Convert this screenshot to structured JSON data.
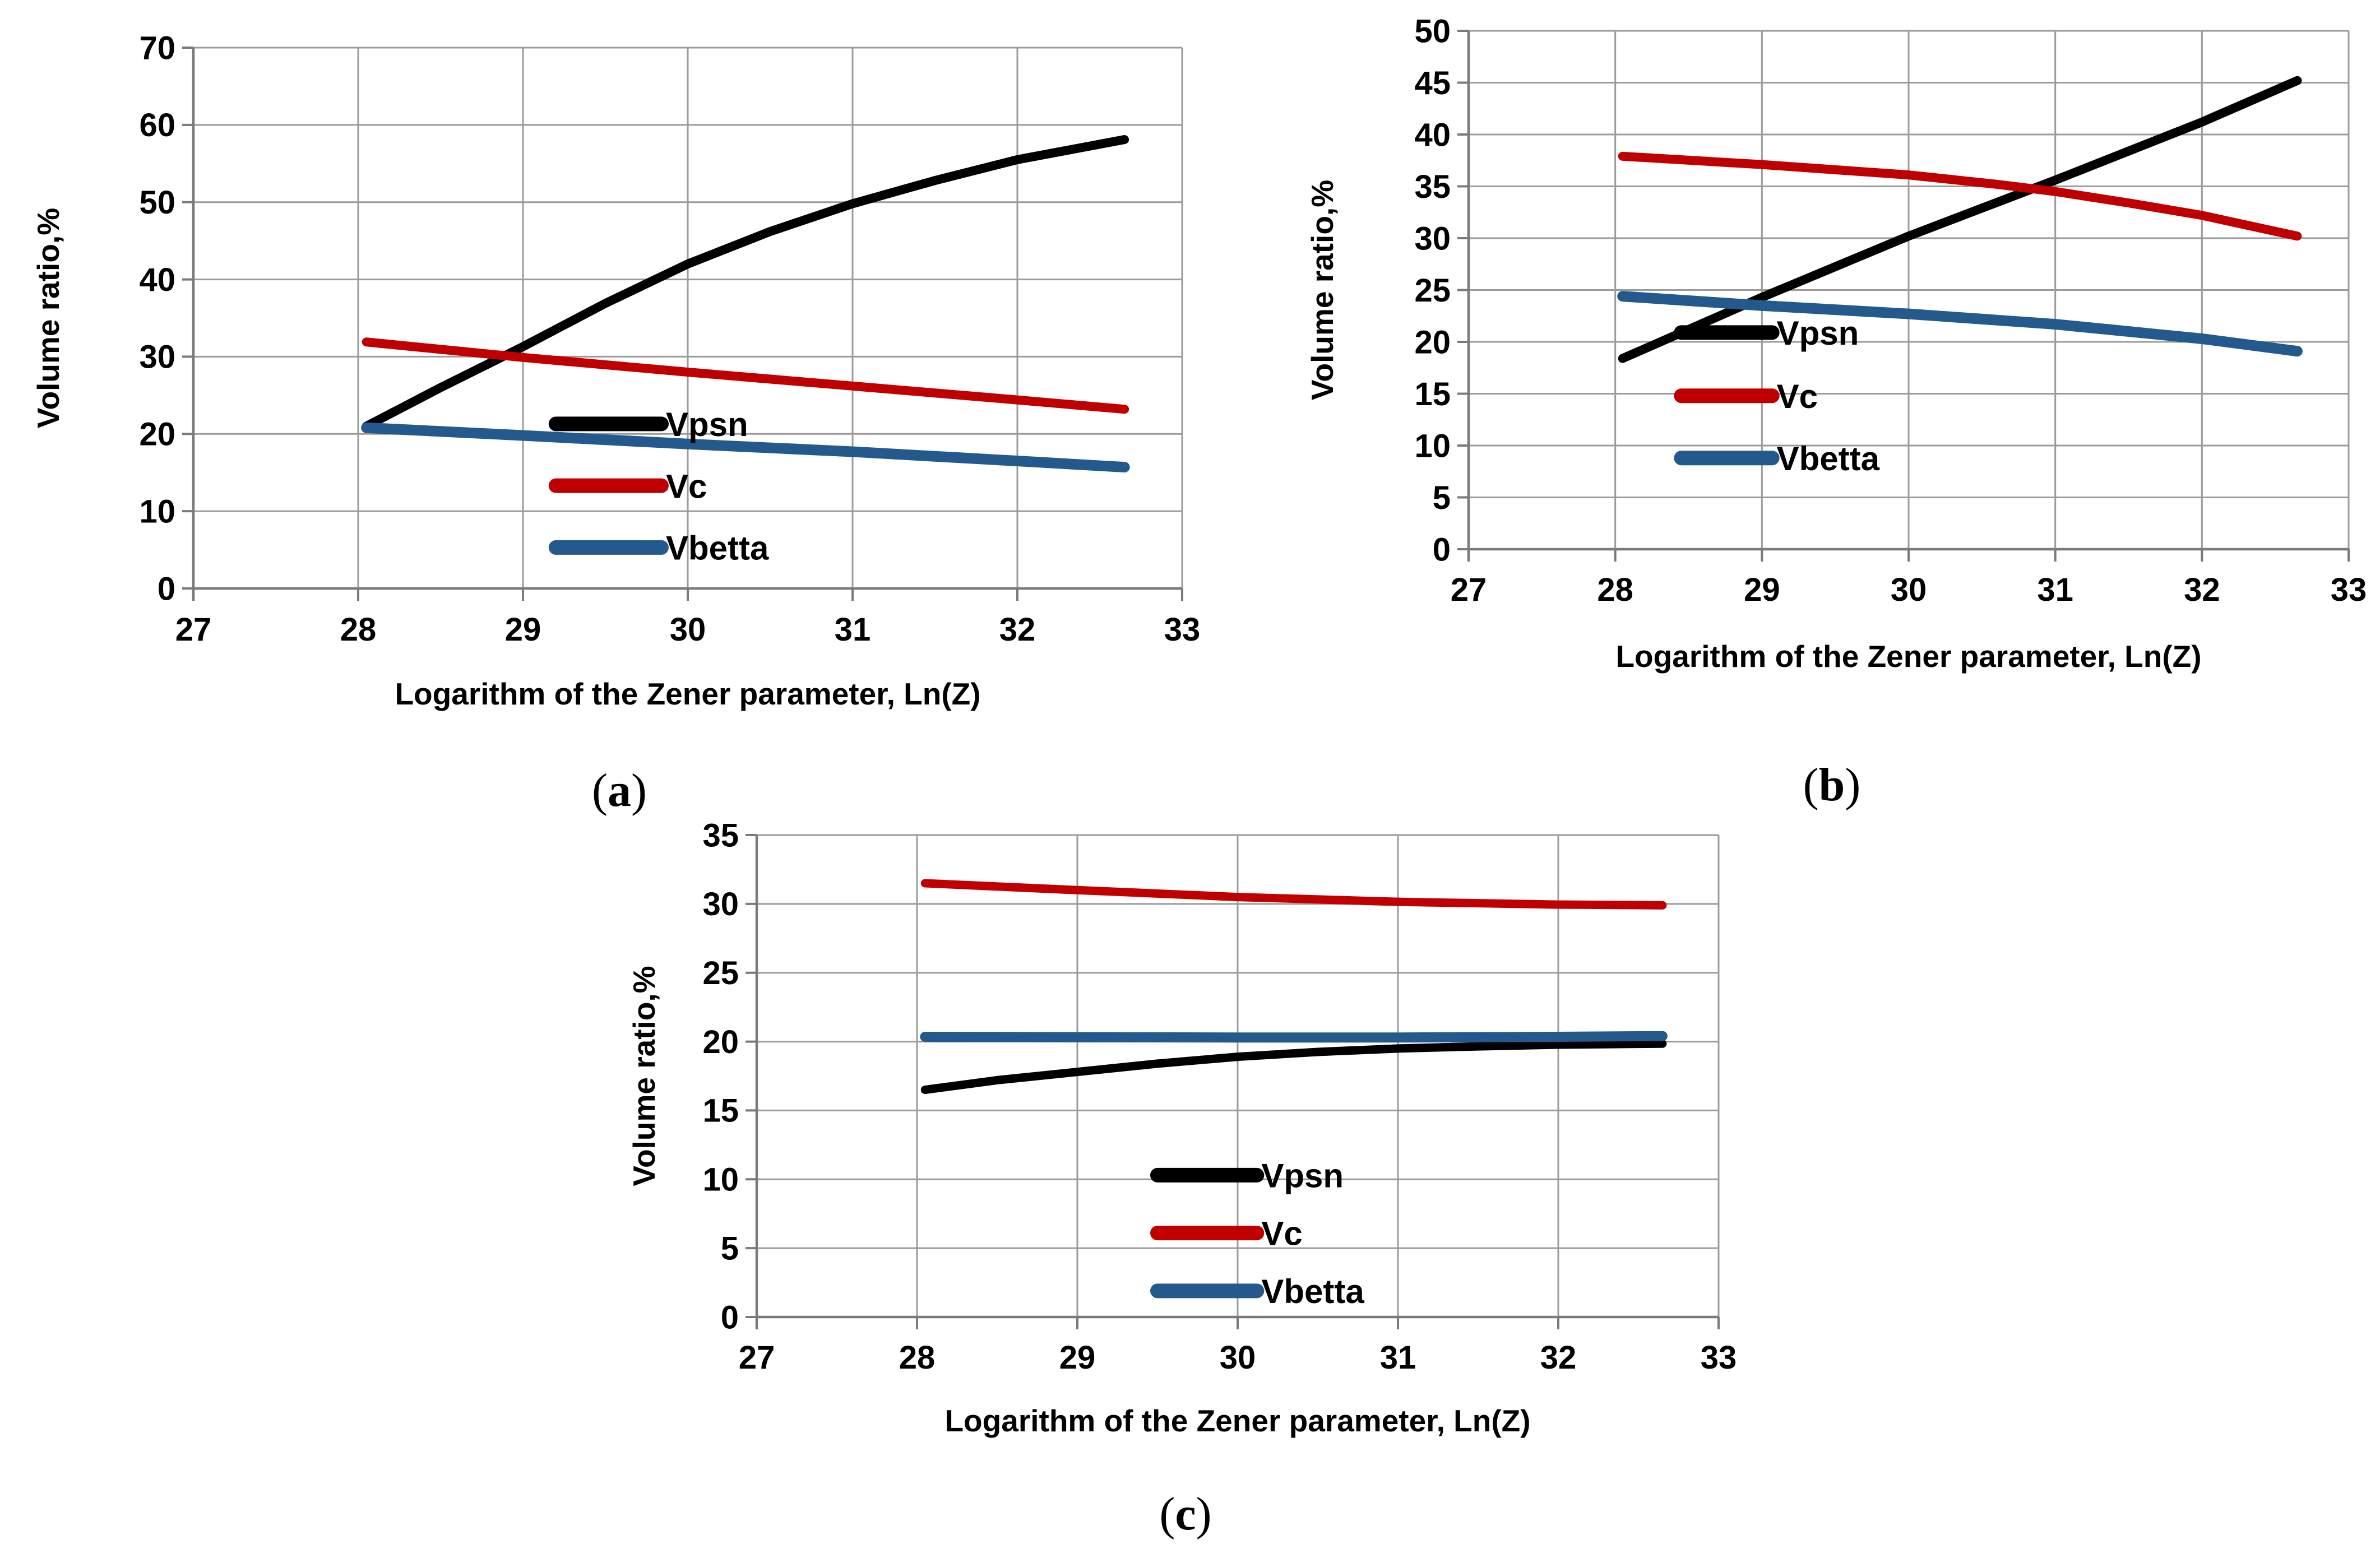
{
  "page": {
    "background": "#ffffff"
  },
  "styles": {
    "grid_color": "#9b9b9b",
    "axis_color": "#7a7a7a",
    "text_color": "#000000",
    "series_colors": {
      "Vpsn": "#000000",
      "Vc": "#c00000",
      "Vbetta": "#24598e"
    }
  },
  "chart_data": [
    {
      "id": "a",
      "type": "line",
      "caption": {
        "open": "(",
        "letter": "a",
        "close": ")"
      },
      "xlabel": "Logarithm of the Zener parameter, Ln(Z)",
      "ylabel": "Volume ratio,%",
      "xlim": [
        27,
        33
      ],
      "ylim": [
        0,
        70
      ],
      "xticks": [
        27,
        28,
        29,
        30,
        31,
        32,
        33
      ],
      "yticks": [
        0,
        10,
        20,
        30,
        40,
        50,
        60,
        70
      ],
      "grid": true,
      "legend_position": "inside-lower-middle",
      "legend_anchor": {
        "x": 29.2,
        "len": 0.64,
        "rows": [
          21.3,
          13.3,
          5.3
        ]
      },
      "series": [
        {
          "name": "Vpsn",
          "color": "#000000",
          "points": [
            [
              28.05,
              21.0
            ],
            [
              28.5,
              26.0
            ],
            [
              29,
              31.3
            ],
            [
              29.5,
              36.9
            ],
            [
              30,
              42.0
            ],
            [
              30.5,
              46.2
            ],
            [
              31,
              49.8
            ],
            [
              31.5,
              52.8
            ],
            [
              32,
              55.5
            ],
            [
              32.65,
              58.1
            ]
          ]
        },
        {
          "name": "Vc",
          "color": "#c00000",
          "points": [
            [
              28.05,
              31.9
            ],
            [
              29,
              29.9
            ],
            [
              30,
              28.0
            ],
            [
              31,
              26.2
            ],
            [
              32,
              24.4
            ],
            [
              32.65,
              23.2
            ]
          ]
        },
        {
          "name": "Vbetta",
          "color": "#24598e",
          "points": [
            [
              28.05,
              20.8
            ],
            [
              29,
              19.8
            ],
            [
              30,
              18.7
            ],
            [
              31,
              17.7
            ],
            [
              32,
              16.5
            ],
            [
              32.65,
              15.7
            ]
          ]
        }
      ]
    },
    {
      "id": "b",
      "type": "line",
      "caption": {
        "open": "(",
        "letter": "b",
        "close": ")"
      },
      "xlabel": "Logarithm of the Zener parameter, Ln(Z)",
      "ylabel": "Volume ratio,%",
      "xlim": [
        27,
        33
      ],
      "ylim": [
        0,
        50
      ],
      "xticks": [
        27,
        28,
        29,
        30,
        31,
        32,
        33
      ],
      "yticks": [
        0,
        5,
        10,
        15,
        20,
        25,
        30,
        35,
        40,
        45,
        50
      ],
      "grid": true,
      "legend_position": "inside-lower-middle",
      "legend_anchor": {
        "x": 28.45,
        "len": 0.62,
        "rows": [
          20.9,
          14.8,
          8.8
        ]
      },
      "series": [
        {
          "name": "Vpsn",
          "color": "#000000",
          "points": [
            [
              28.05,
              18.4
            ],
            [
              29,
              24.3
            ],
            [
              30,
              30.2
            ],
            [
              31,
              35.6
            ],
            [
              32,
              41.2
            ],
            [
              32.65,
              45.2
            ]
          ]
        },
        {
          "name": "Vc",
          "color": "#c00000",
          "points": [
            [
              28.05,
              37.9
            ],
            [
              29,
              37.1
            ],
            [
              30,
              36.1
            ],
            [
              30.6,
              35.2
            ],
            [
              31,
              34.5
            ],
            [
              31.5,
              33.4
            ],
            [
              32,
              32.2
            ],
            [
              32.65,
              30.2
            ]
          ]
        },
        {
          "name": "Vbetta",
          "color": "#24598e",
          "points": [
            [
              28.05,
              24.4
            ],
            [
              29,
              23.5
            ],
            [
              30,
              22.7
            ],
            [
              31,
              21.7
            ],
            [
              32,
              20.3
            ],
            [
              32.65,
              19.1
            ]
          ]
        }
      ]
    },
    {
      "id": "c",
      "type": "line",
      "caption": {
        "open": "(",
        "letter": "c",
        "close": ")"
      },
      "xlabel": "Logarithm of the Zener parameter, Ln(Z)",
      "ylabel": "Volume ratio,%",
      "xlim": [
        27,
        33
      ],
      "ylim": [
        0,
        35
      ],
      "xticks": [
        27,
        28,
        29,
        30,
        31,
        32,
        33
      ],
      "yticks": [
        0,
        5,
        10,
        15,
        20,
        25,
        30,
        35
      ],
      "grid": true,
      "legend_position": "inside-lower-middle",
      "legend_anchor": {
        "x": 29.5,
        "len": 0.62,
        "rows": [
          10.3,
          6.1,
          1.9
        ]
      },
      "series": [
        {
          "name": "Vpsn",
          "color": "#000000",
          "points": [
            [
              28.05,
              16.5
            ],
            [
              28.5,
              17.2
            ],
            [
              29,
              17.8
            ],
            [
              29.5,
              18.4
            ],
            [
              30,
              18.9
            ],
            [
              30.5,
              19.25
            ],
            [
              31,
              19.5
            ],
            [
              31.5,
              19.65
            ],
            [
              32,
              19.78
            ],
            [
              32.65,
              19.85
            ]
          ]
        },
        {
          "name": "Vc",
          "color": "#c00000",
          "points": [
            [
              28.05,
              31.5
            ],
            [
              29,
              31.0
            ],
            [
              30,
              30.5
            ],
            [
              31,
              30.15
            ],
            [
              32,
              29.95
            ],
            [
              32.65,
              29.9
            ]
          ]
        },
        {
          "name": "Vbetta",
          "color": "#24598e",
          "points": [
            [
              28.05,
              20.35
            ],
            [
              30,
              20.3
            ],
            [
              31,
              20.3
            ],
            [
              32,
              20.35
            ],
            [
              32.65,
              20.4
            ]
          ]
        }
      ]
    }
  ]
}
